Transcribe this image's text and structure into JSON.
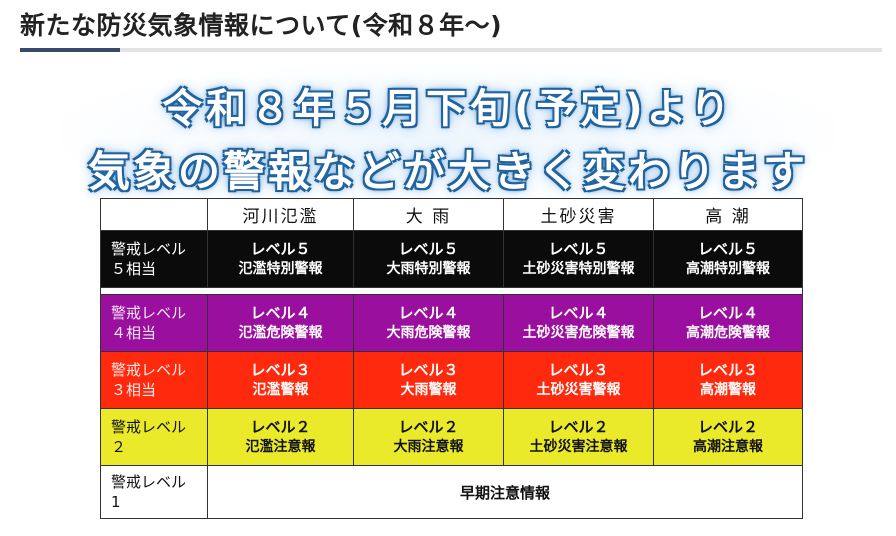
{
  "page": {
    "heading": "新たな防災気象情報について(令和８年〜)",
    "accent_color": "#3a4a6b"
  },
  "banner": {
    "line1": "令和８年５月下旬(予定)より",
    "line2": "気象の警報などが大きく変わります",
    "glow_color": "#2c78bd"
  },
  "table": {
    "columns": [
      "河川氾濫",
      "大 雨",
      "土砂災害",
      "高 潮"
    ],
    "rows": [
      {
        "label_top": "警戒レベル",
        "label_bottom": "５相当",
        "color": "#0b0b0b",
        "cells": [
          {
            "level": "レベル５",
            "name": "氾濫特別警報"
          },
          {
            "level": "レベル５",
            "name": "大雨特別警報"
          },
          {
            "level": "レベル５",
            "name": "土砂災害特別警報"
          },
          {
            "level": "レベル５",
            "name": "高潮特別警報"
          }
        ]
      },
      {
        "label_top": "警戒レベル",
        "label_bottom": "４相当",
        "color": "#9b0f9f",
        "cells": [
          {
            "level": "レベル４",
            "name": "氾濫危険警報"
          },
          {
            "level": "レベル４",
            "name": "大雨危険警報"
          },
          {
            "level": "レベル４",
            "name": "土砂災害危険警報"
          },
          {
            "level": "レベル４",
            "name": "高潮危険警報"
          }
        ]
      },
      {
        "label_top": "警戒レベル",
        "label_bottom": "３相当",
        "color": "#ff2a0d",
        "cells": [
          {
            "level": "レベル３",
            "name": "氾濫警報"
          },
          {
            "level": "レベル３",
            "name": "大雨警報"
          },
          {
            "level": "レベル３",
            "name": "土砂災害警報"
          },
          {
            "level": "レベル３",
            "name": "高潮警報"
          }
        ]
      },
      {
        "label_top": "警戒レベル",
        "label_bottom": "２",
        "color": "#eaea2a",
        "cells": [
          {
            "level": "レベル２",
            "name": "氾濫注意報"
          },
          {
            "level": "レベル２",
            "name": "大雨注意報"
          },
          {
            "level": "レベル２",
            "name": "土砂災害注意報"
          },
          {
            "level": "レベル２",
            "name": "高潮注意報"
          }
        ]
      },
      {
        "label_top": "警戒レベル",
        "label_bottom": "1",
        "color": "#ffffff",
        "merged": "早期注意情報"
      }
    ]
  }
}
